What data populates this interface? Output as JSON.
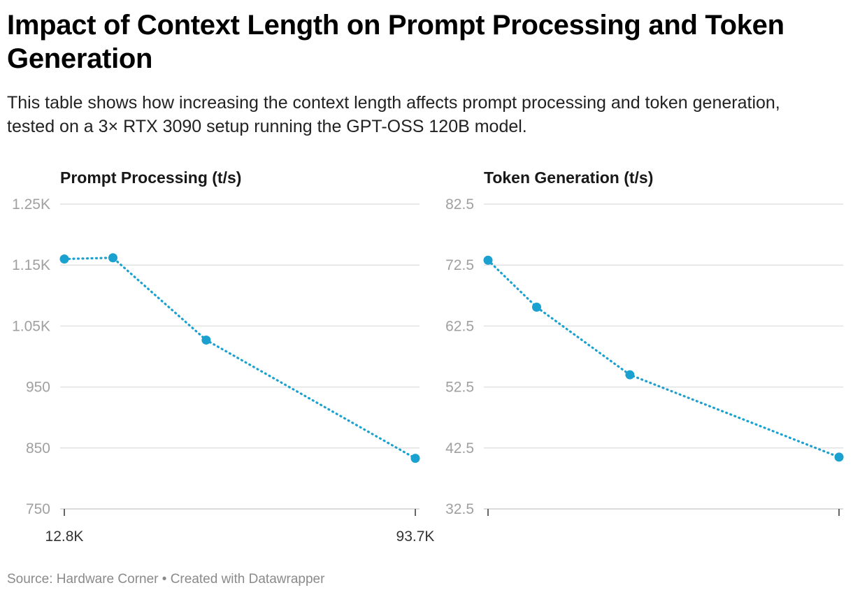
{
  "title": "Impact of Context Length on Prompt Processing and Token Generation",
  "description": "This table shows how increasing the context length affects prompt processing and token generation, tested on a 3× RTX 3090 setup running the GPT-OSS 120B model.",
  "footer": {
    "source": "Source: Hardware Corner",
    "separator": " • ",
    "credit": "Created with Datawrapper"
  },
  "colors": {
    "line": "#1aa1cf",
    "grid": "#e2e2e2",
    "tick_text": "#a0a0a0"
  },
  "chart_data": [
    {
      "type": "line",
      "title": "Prompt Processing (t/s)",
      "x": [
        12800,
        24000,
        45500,
        93700
      ],
      "values": [
        1160,
        1162,
        1027,
        833
      ],
      "xlim": [
        12800,
        93700
      ],
      "ylim": [
        750,
        1250
      ],
      "yticks": [
        750,
        850,
        950,
        1050,
        1150,
        1250
      ],
      "ytick_labels": [
        "750",
        "850",
        "950",
        "1.05K",
        "1.15K",
        "1.25K"
      ],
      "xtick_labels": [
        "12.8K",
        "93.7K"
      ],
      "line_style": "dotted",
      "grid": true
    },
    {
      "type": "line",
      "title": "Token Generation (t/s)",
      "x": [
        12800,
        24000,
        45500,
        93700
      ],
      "values": [
        73.3,
        65.6,
        54.5,
        41.0
      ],
      "xlim": [
        12800,
        93700
      ],
      "ylim": [
        32.5,
        82.5
      ],
      "yticks": [
        32.5,
        42.5,
        52.5,
        62.5,
        72.5,
        82.5
      ],
      "ytick_labels": [
        "32.5",
        "42.5",
        "52.5",
        "62.5",
        "72.5",
        "82.5"
      ],
      "xtick_labels": [
        "",
        ""
      ],
      "line_style": "dotted",
      "grid": true
    }
  ]
}
